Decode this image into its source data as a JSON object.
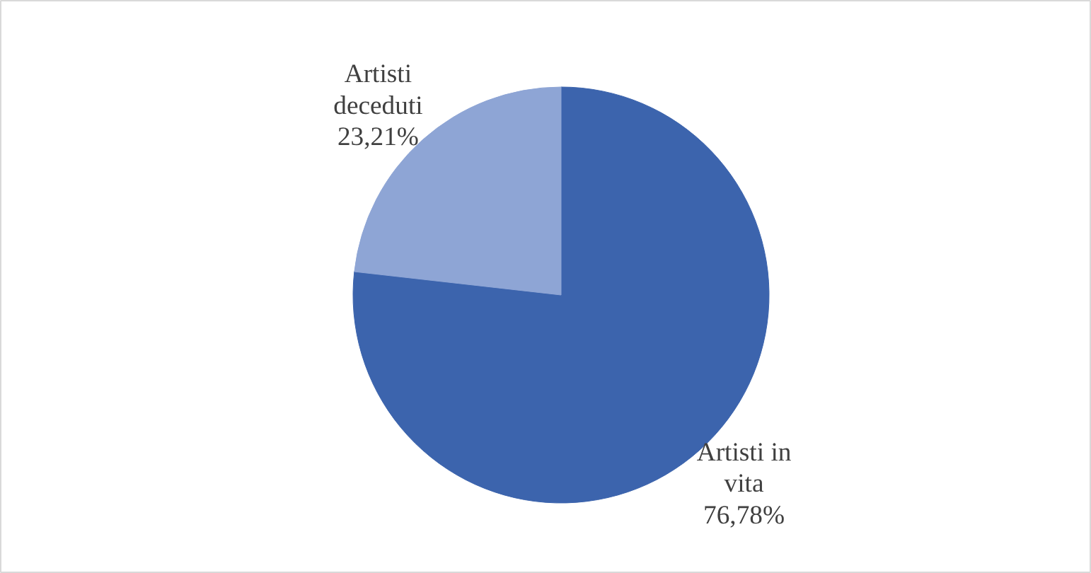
{
  "chart_data": {
    "type": "pie",
    "categories": [
      "Artisti in vita",
      "Artisti deceduti"
    ],
    "values": [
      76.78,
      23.21
    ],
    "colors": [
      "#3c64ad",
      "#8ea5d5"
    ],
    "value_labels": [
      "76,78%",
      "23,21%"
    ]
  }
}
